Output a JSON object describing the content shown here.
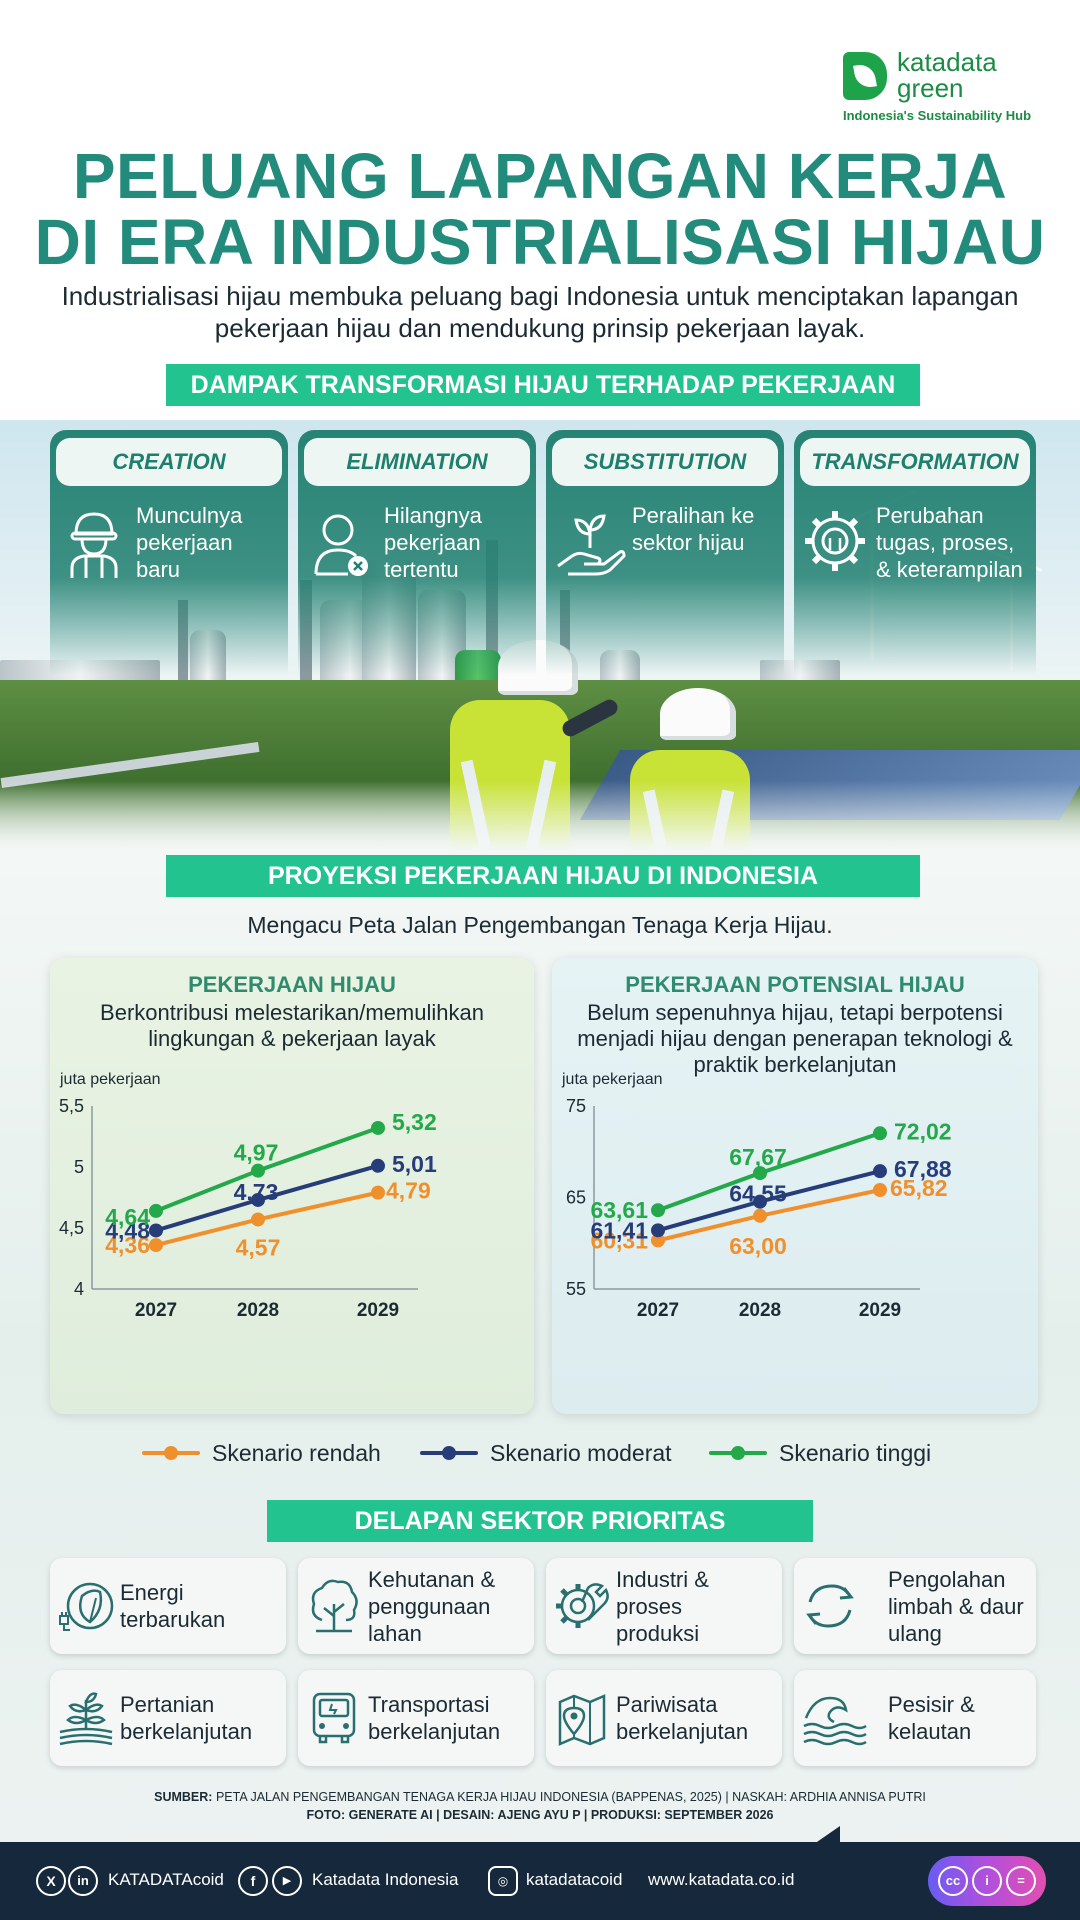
{
  "brand": {
    "name_line1": "katadata",
    "name_line2": "green",
    "tagline": "Indonesia's Sustainability Hub"
  },
  "header": {
    "title_line1": "PELUANG LAPANGAN KERJA",
    "title_line2": "DI ERA INDUSTRIALISASI HIJAU",
    "intro": "Industrialisasi hijau membuka peluang bagi Indonesia untuk menciptakan lapangan pekerjaan hijau dan mendukung prinsip pekerjaan layak."
  },
  "impact": {
    "banner": "DAMPAK TRANSFORMASI HIJAU TERHADAP PEKERJAAN",
    "items": [
      {
        "title": "CREATION",
        "text": "Munculnya pekerjaan baru",
        "icon": "worker-helmet-icon"
      },
      {
        "title": "ELIMINATION",
        "text": "Hilangnya pekerjaan tertentu",
        "icon": "person-remove-icon"
      },
      {
        "title": "SUBSTITUTION",
        "text": "Peralihan ke sektor hijau",
        "icon": "hand-sprout-icon"
      },
      {
        "title": "TRANSFORMATION",
        "text": "Perubahan tugas, proses, & keterampilan",
        "icon": "gear-circuit-icon"
      }
    ]
  },
  "projection": {
    "banner": "PROYEKSI PEKERJAAN HIJAU DI INDONESIA",
    "subtitle": "Mengacu Peta Jalan Pengembangan Tenaga Kerja Hijau.",
    "legend": [
      "Skenario rendah",
      "Skenario moderat",
      "Skenario tinggi"
    ]
  },
  "colors": {
    "rendah": "#f0902c",
    "moderat": "#263d7a",
    "tinggi": "#23a84a",
    "accent": "#23c38f",
    "title": "#238b7b"
  },
  "chart_data": [
    {
      "type": "line",
      "title": "PEKERJAAN HIJAU",
      "subtitle": "Berkontribusi melestarikan/memulihkan lingkungan & pekerjaan layak",
      "ylabel": "juta pekerjaan",
      "x": [
        "2027",
        "2028",
        "2029"
      ],
      "ylim": [
        4,
        5.5
      ],
      "yticks": [
        "4",
        "4,5",
        "5",
        "5,5"
      ],
      "ytick_values": [
        4,
        4.5,
        5,
        5.5
      ],
      "series": [
        {
          "name": "Skenario rendah",
          "values": [
            4.36,
            4.57,
            4.79
          ],
          "labels": [
            "4,36",
            "4,57",
            "4,79"
          ]
        },
        {
          "name": "Skenario moderat",
          "values": [
            4.48,
            4.73,
            5.01
          ],
          "labels": [
            "4,48",
            "4,73",
            "5,01"
          ]
        },
        {
          "name": "Skenario tinggi",
          "values": [
            4.64,
            4.97,
            5.32
          ],
          "labels": [
            "4,64",
            "4,97",
            "5,32"
          ]
        }
      ]
    },
    {
      "type": "line",
      "title": "PEKERJAAN POTENSIAL HIJAU",
      "subtitle": "Belum sepenuhnya hijau, tetapi berpotensi menjadi hijau dengan penerapan teknologi & praktik berkelanjutan",
      "ylabel": "juta pekerjaan",
      "x": [
        "2027",
        "2028",
        "2029"
      ],
      "ylim": [
        55,
        75
      ],
      "yticks": [
        "55",
        "65",
        "75"
      ],
      "ytick_values": [
        55,
        65,
        75
      ],
      "series": [
        {
          "name": "Skenario rendah",
          "values": [
            60.31,
            63.0,
            65.82
          ],
          "labels": [
            "60,31",
            "63,00",
            "65,82"
          ]
        },
        {
          "name": "Skenario moderat",
          "values": [
            61.41,
            64.55,
            67.88
          ],
          "labels": [
            "61,41",
            "64,55",
            "67,88"
          ]
        },
        {
          "name": "Skenario tinggi",
          "values": [
            63.61,
            67.67,
            72.02
          ],
          "labels": [
            "63,61",
            "67,67",
            "72,02"
          ]
        }
      ]
    }
  ],
  "sectors": {
    "banner": "DELAPAN SEKTOR PRIORITAS",
    "items": [
      {
        "label": "Energi terbarukan",
        "icon": "leaf-plug-icon"
      },
      {
        "label": "Kehutanan & penggunaan lahan",
        "icon": "tree-icon"
      },
      {
        "label": "Industri & proses produksi",
        "icon": "gear-wrench-icon"
      },
      {
        "label": "Pengolahan limbah & daur ulang",
        "icon": "recycle-icon"
      },
      {
        "label": "Pertanian berkelanjutan",
        "icon": "sprout-field-icon"
      },
      {
        "label": "Transportasi berkelanjutan",
        "icon": "bus-icon"
      },
      {
        "label": "Pariwisata berkelanjutan",
        "icon": "map-pin-icon"
      },
      {
        "label": "Pesisir & kelautan",
        "icon": "wave-icon"
      }
    ]
  },
  "source": {
    "line1_label": "SUMBER:",
    "line1_text": "PETA JALAN PENGEMBANGAN TENAGA KERJA HIJAU INDONESIA (BAPPENAS, 2025) | NASKAH: ARDHIA ANNISA PUTRI",
    "line2": "FOTO: GENERATE AI | DESAIN: AJENG AYU P | PRODUKSI: SEPTEMBER 2026"
  },
  "footer": {
    "social1": "KATADATAcoid",
    "social2": "Katadata Indonesia",
    "social3": "katadatacoid",
    "website": "www.katadata.co.id",
    "icons": [
      "x-icon",
      "linkedin-icon",
      "facebook-icon",
      "youtube-icon",
      "instagram-icon",
      "cc-icon",
      "attribution-icon",
      "noderivs-icon"
    ]
  }
}
